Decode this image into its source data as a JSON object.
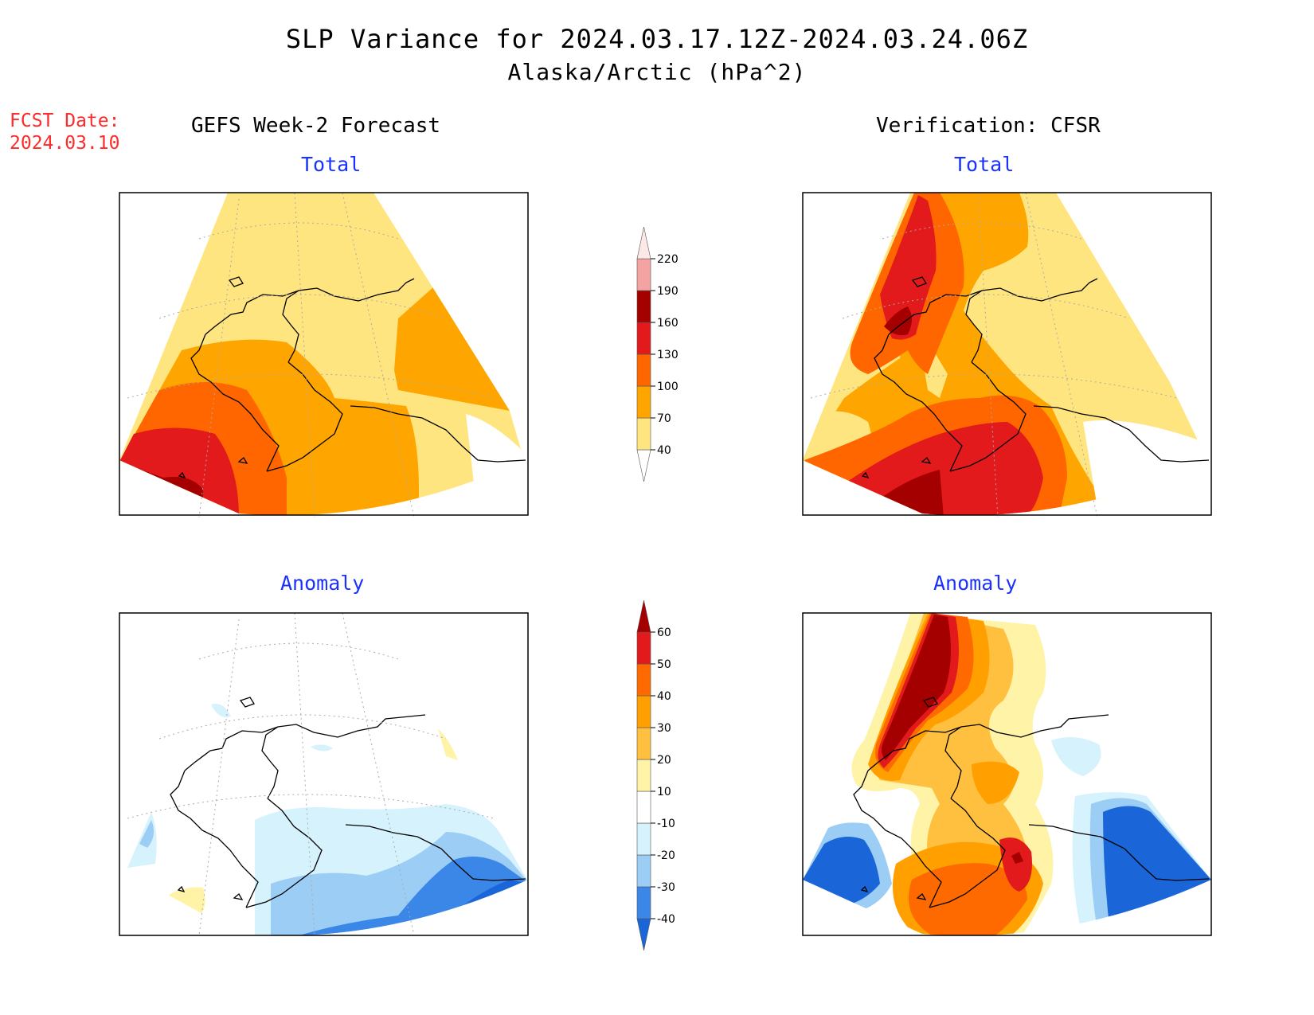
{
  "title": {
    "line1": "SLP Variance for 2024.03.17.12Z-2024.03.24.06Z",
    "line2": "Alaska/Arctic (hPa^2)"
  },
  "forecast_date": {
    "label": "FCST Date:",
    "value": "2024.03.10"
  },
  "columns": {
    "left": "GEFS Week-2 Forecast",
    "right": "Verification: CFSR"
  },
  "panels": [
    {
      "id": "fcst-total",
      "title": "Total"
    },
    {
      "id": "verif-total",
      "title": "Total"
    },
    {
      "id": "fcst-anomaly",
      "title": "Anomaly"
    },
    {
      "id": "verif-anomaly",
      "title": "Anomaly"
    }
  ],
  "colorbars": {
    "total": {
      "labels": [
        "40",
        "70",
        "100",
        "130",
        "160",
        "190",
        "220"
      ],
      "colors": [
        "#ffffff",
        "#ffe57f",
        "#ffa500",
        "#ff6600",
        "#e31a1c",
        "#a50000",
        "#f4a3a3",
        "#fde8e8"
      ]
    },
    "anomaly": {
      "labels": [
        "-40",
        "-30",
        "-20",
        "-10",
        "10",
        "20",
        "30",
        "40",
        "50",
        "60"
      ],
      "colors": [
        "#1a66d9",
        "#3a87e8",
        "#9ccdf5",
        "#d6f2fc",
        "#ffffff",
        "#fff3a8",
        "#ffc040",
        "#ff9f00",
        "#ff6a00",
        "#e31a1c",
        "#a50000"
      ]
    }
  }
}
